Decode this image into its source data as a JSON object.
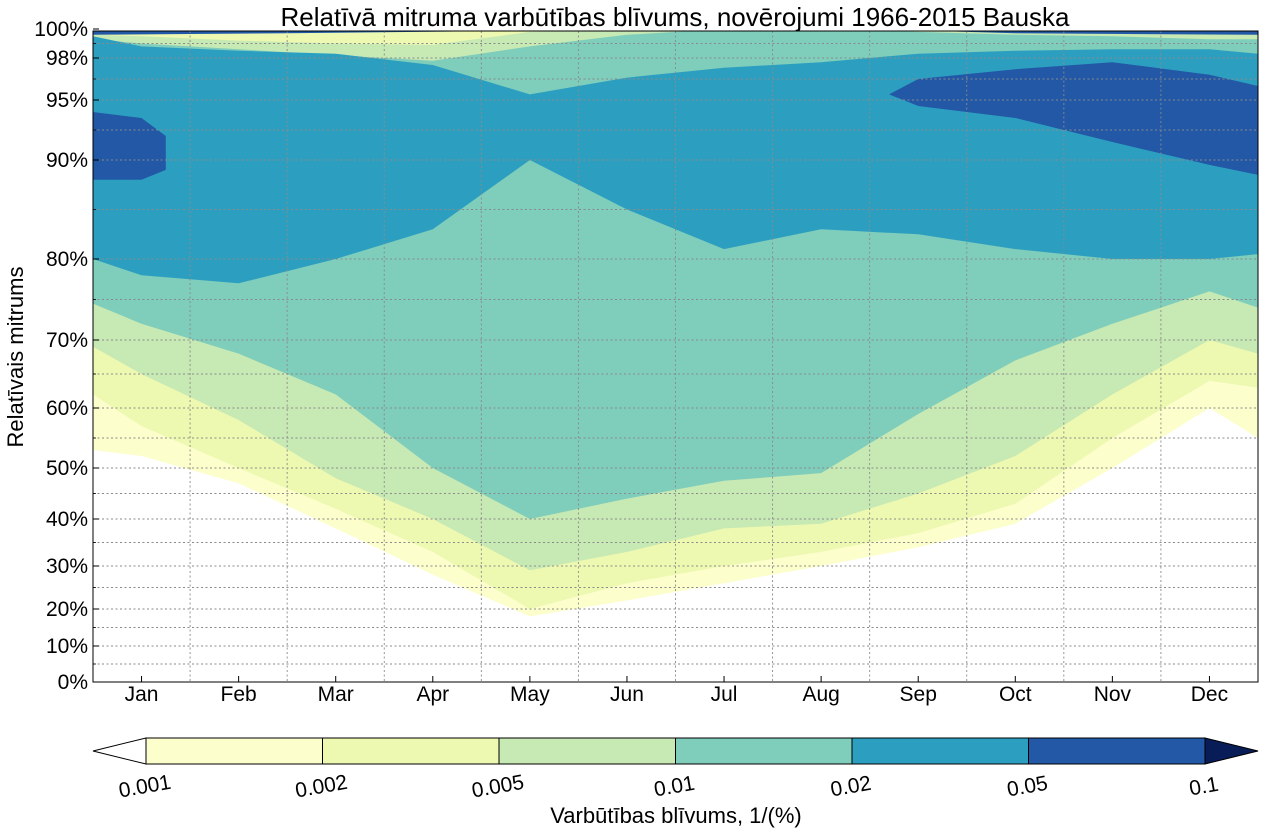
{
  "chart_data": {
    "type": "heatmap",
    "subtype": "filled-contour",
    "title": "Relatīvā mitruma varbūtības blīvums, novērojumi 1966-2015 Bauska",
    "ylabel": "Relatīvais mitrums",
    "x_categories": [
      "Jan",
      "Feb",
      "Mar",
      "Apr",
      "May",
      "Jun",
      "Jul",
      "Aug",
      "Sep",
      "Oct",
      "Nov",
      "Dec"
    ],
    "y_ticks": [
      {
        "value": 0,
        "label": "0%"
      },
      {
        "value": 10,
        "label": "10%"
      },
      {
        "value": 20,
        "label": "20%"
      },
      {
        "value": 30,
        "label": "30%"
      },
      {
        "value": 40,
        "label": "40%"
      },
      {
        "value": 50,
        "label": "50%"
      },
      {
        "value": 60,
        "label": "60%"
      },
      {
        "value": 70,
        "label": "70%"
      },
      {
        "value": 80,
        "label": "80%"
      },
      {
        "value": 90,
        "label": "90%"
      },
      {
        "value": 95,
        "label": "95%"
      },
      {
        "value": 98,
        "label": "98%"
      },
      {
        "value": 100,
        "label": "100%"
      }
    ],
    "y_minor_ticks": [
      5,
      15,
      25,
      35,
      45,
      55,
      65,
      75,
      85,
      92.5,
      96.5,
      99
    ],
    "y_scale": "nonlinear (stretched toward 100%)",
    "ylim": [
      0,
      100
    ],
    "grid": true,
    "colorbar": {
      "label": "Varbūtības blīvums, 1/(%)",
      "placement": "bottom",
      "scale": "log",
      "levels": [
        0.001,
        0.002,
        0.005,
        0.01,
        0.02,
        0.05,
        0.1
      ],
      "tick_labels": [
        "0.001",
        "0.002",
        "0.005",
        "0.01",
        "0.02",
        "0.05",
        "0.1"
      ],
      "band_colors": [
        "#fcfecb",
        "#edf8b1",
        "#c7e9b4",
        "#7fcdbb",
        "#2c9fc0",
        "#2258a6",
        "#081d58"
      ],
      "extend": "both",
      "under_color": "#ffffff",
      "over_color": "#081d58"
    },
    "contour_month_positions": [
      0,
      0.5,
      1.5,
      2.5,
      3.5,
      4.5,
      5.5,
      6.5,
      7.5,
      8.5,
      9.5,
      10.5,
      11.5,
      12
    ],
    "contour_levels": [
      {
        "density_min": 0.001,
        "lower": [
          53,
          52,
          47,
          38,
          28,
          18,
          22,
          26,
          30,
          34,
          39,
          50,
          60,
          55
        ],
        "upper": [
          100,
          100,
          100,
          100,
          100,
          100,
          100,
          100,
          100,
          100,
          100,
          100,
          100,
          100
        ]
      },
      {
        "density_min": 0.002,
        "lower": [
          62,
          57,
          50,
          42,
          33,
          20,
          26,
          30,
          33,
          37,
          43,
          55,
          64,
          63
        ],
        "upper": [
          100,
          100,
          100,
          100,
          100,
          100,
          100,
          100,
          100,
          100,
          100,
          100,
          100,
          100
        ]
      },
      {
        "density_min": 0.005,
        "lower": [
          69,
          65,
          58,
          48,
          40,
          29,
          33,
          38,
          39,
          45,
          52,
          62,
          70,
          68
        ],
        "upper": [
          99.6,
          99.5,
          99.2,
          99.0,
          98.9,
          99.8,
          100,
          100,
          100,
          100,
          100,
          100,
          100,
          100
        ]
      },
      {
        "density_min": 0.01,
        "lower": [
          74.5,
          72,
          68,
          62,
          50,
          40,
          44,
          47.5,
          49,
          59,
          67,
          72,
          76,
          74
        ],
        "upper": [
          99.3,
          99.0,
          98.6,
          98.2,
          97.8,
          98.8,
          99.6,
          100,
          100,
          99.8,
          99.6,
          99.5,
          99.3,
          99.3
        ]
      },
      {
        "density_min": 0.02,
        "lower": [
          80,
          78,
          77,
          80,
          83,
          90,
          85,
          81,
          83,
          82.5,
          81,
          80,
          80,
          80.5
        ],
        "upper": [
          99.5,
          98.8,
          98.5,
          98.3,
          97.5,
          95.4,
          96.6,
          97.3,
          97.7,
          98.3,
          98.5,
          98.6,
          98.6,
          98.3
        ]
      },
      {
        "density_min": 0.05,
        "regions": [
          {
            "months": [
              0,
              0.5,
              0.75
            ],
            "lower": [
              88,
              88,
              89
            ],
            "upper": [
              94,
              93.5,
              92
            ]
          },
          {
            "months": [
              8.2,
              8.5,
              9.5,
              10.5,
              11.5,
              12
            ],
            "lower": [
              95.4,
              94.5,
              93.5,
              91.5,
              89.5,
              88.5
            ],
            "upper": [
              95.4,
              96.5,
              97.2,
              97.7,
              96.8,
              96.0
            ]
          },
          {
            "months": [
              0,
              2,
              4,
              6,
              8,
              9.5,
              12
            ],
            "lower": [
              99.6,
              99.7,
              99.85,
              100,
              100,
              99.7,
              99.6
            ],
            "upper": [
              100,
              100,
              100,
              100,
              100,
              100,
              100
            ]
          }
        ]
      },
      {
        "density_min": 0.1,
        "regions": [
          {
            "months": [
              9.7,
              10.3,
              10.9
            ],
            "lower": [
              99.95,
              99.85,
              99.95
            ],
            "upper": [
              100,
              100,
              100
            ]
          }
        ]
      }
    ]
  }
}
